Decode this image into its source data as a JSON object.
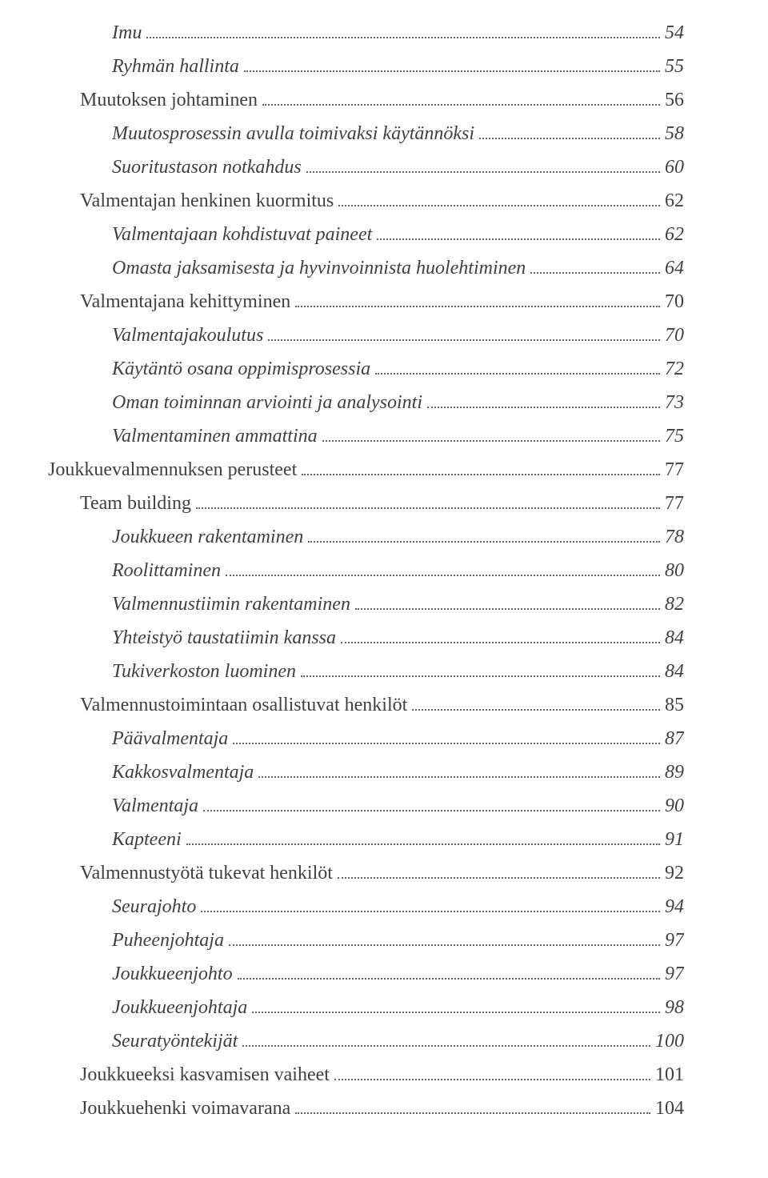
{
  "colors": {
    "text": "#404040",
    "dots": "#606060",
    "background": "#ffffff"
  },
  "typography": {
    "fontFamily": "Georgia, 'Times New Roman', serif",
    "fontSize": 24,
    "lineHeight": 42
  },
  "layout": {
    "pageWidth": 960,
    "pageHeight": 1472,
    "indentPerLevel": 40
  },
  "toc": [
    {
      "label": "Imu",
      "page": "54",
      "level": 2,
      "italic": true
    },
    {
      "label": "Ryhmän hallinta",
      "page": "55",
      "level": 2,
      "italic": true
    },
    {
      "label": "Muutoksen johtaminen",
      "page": "56",
      "level": 1,
      "italic": false
    },
    {
      "label": "Muutosprosessin avulla toimivaksi käytännöksi",
      "page": "58",
      "level": 2,
      "italic": true
    },
    {
      "label": "Suoritustason notkahdus",
      "page": "60",
      "level": 2,
      "italic": true
    },
    {
      "label": "Valmentajan henkinen kuormitus",
      "page": "62",
      "level": 1,
      "italic": false
    },
    {
      "label": "Valmentajaan kohdistuvat paineet",
      "page": "62",
      "level": 2,
      "italic": true
    },
    {
      "label": "Omasta jaksamisesta ja hyvinvoinnista huolehtiminen",
      "page": "64",
      "level": 2,
      "italic": true
    },
    {
      "label": "Valmentajana kehittyminen",
      "page": "70",
      "level": 1,
      "italic": false
    },
    {
      "label": "Valmentajakoulutus",
      "page": "70",
      "level": 2,
      "italic": true
    },
    {
      "label": "Käytäntö osana oppimisprosessia",
      "page": "72",
      "level": 2,
      "italic": true
    },
    {
      "label": "Oman toiminnan arviointi ja analysointi",
      "page": "73",
      "level": 2,
      "italic": true
    },
    {
      "label": "Valmentaminen ammattina",
      "page": "75",
      "level": 2,
      "italic": true
    },
    {
      "label": "Joukkuevalmennuksen perusteet",
      "page": "77",
      "level": 0,
      "italic": false
    },
    {
      "label": "Team building",
      "page": "77",
      "level": 1,
      "italic": false
    },
    {
      "label": "Joukkueen rakentaminen",
      "page": "78",
      "level": 2,
      "italic": true
    },
    {
      "label": "Roolittaminen",
      "page": "80",
      "level": 2,
      "italic": true
    },
    {
      "label": "Valmennustiimin rakentaminen",
      "page": "82",
      "level": 2,
      "italic": true
    },
    {
      "label": "Yhteistyö taustatiimin kanssa",
      "page": "84",
      "level": 2,
      "italic": true
    },
    {
      "label": "Tukiverkoston luominen",
      "page": "84",
      "level": 2,
      "italic": true
    },
    {
      "label": "Valmennustoimintaan osallistuvat henkilöt",
      "page": "85",
      "level": 1,
      "italic": false
    },
    {
      "label": "Päävalmentaja",
      "page": "87",
      "level": 2,
      "italic": true
    },
    {
      "label": "Kakkosvalmentaja",
      "page": "89",
      "level": 2,
      "italic": true
    },
    {
      "label": "Valmentaja",
      "page": "90",
      "level": 2,
      "italic": true
    },
    {
      "label": "Kapteeni",
      "page": "91",
      "level": 2,
      "italic": true
    },
    {
      "label": "Valmennustyötä tukevat henkilöt",
      "page": "92",
      "level": 1,
      "italic": false
    },
    {
      "label": "Seurajohto",
      "page": "94",
      "level": 2,
      "italic": true
    },
    {
      "label": "Puheenjohtaja",
      "page": "97",
      "level": 2,
      "italic": true
    },
    {
      "label": "Joukkueenjohto",
      "page": "97",
      "level": 2,
      "italic": true
    },
    {
      "label": "Joukkueenjohtaja",
      "page": "98",
      "level": 2,
      "italic": true
    },
    {
      "label": "Seuratyöntekijät",
      "page": "100",
      "level": 2,
      "italic": true
    },
    {
      "label": "Joukkueeksi kasvamisen vaiheet",
      "page": "101",
      "level": 1,
      "italic": false
    },
    {
      "label": "Joukkuehenki voimavarana",
      "page": "104",
      "level": 1,
      "italic": false
    }
  ]
}
